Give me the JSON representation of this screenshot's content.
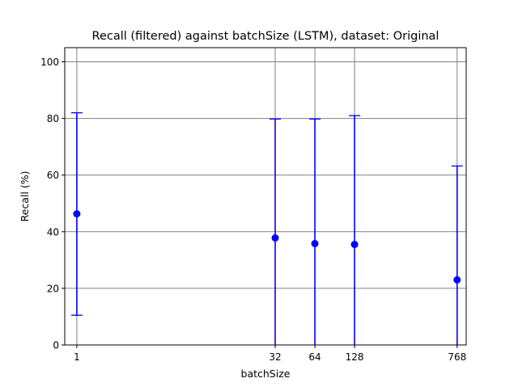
{
  "chart_data": {
    "type": "scatter",
    "title": "Recall (filtered) against batchSize (LSTM), dataset: Original",
    "xlabel": "batchSize",
    "ylabel": "Recall (%)",
    "x_scale": "log2",
    "x_ticks": [
      1,
      32,
      64,
      128,
      768
    ],
    "x_tick_labels": [
      "1",
      "32",
      "64",
      "128",
      "768"
    ],
    "ylim": [
      0,
      105
    ],
    "y_ticks": [
      0,
      20,
      40,
      60,
      80,
      100
    ],
    "y_tick_labels": [
      "0",
      "20",
      "40",
      "60",
      "80",
      "100"
    ],
    "grid": true,
    "color": "#0000ff",
    "points": [
      {
        "x": 1,
        "y": 46.3,
        "low": 10.5,
        "high": 82.0
      },
      {
        "x": 32,
        "y": 37.8,
        "low": 0,
        "high": 79.8
      },
      {
        "x": 64,
        "y": 35.8,
        "low": 0,
        "high": 79.8
      },
      {
        "x": 128,
        "y": 35.5,
        "low": 0,
        "high": 81.0
      },
      {
        "x": 768,
        "y": 23.0,
        "low": 0,
        "high": 63.2
      }
    ]
  }
}
